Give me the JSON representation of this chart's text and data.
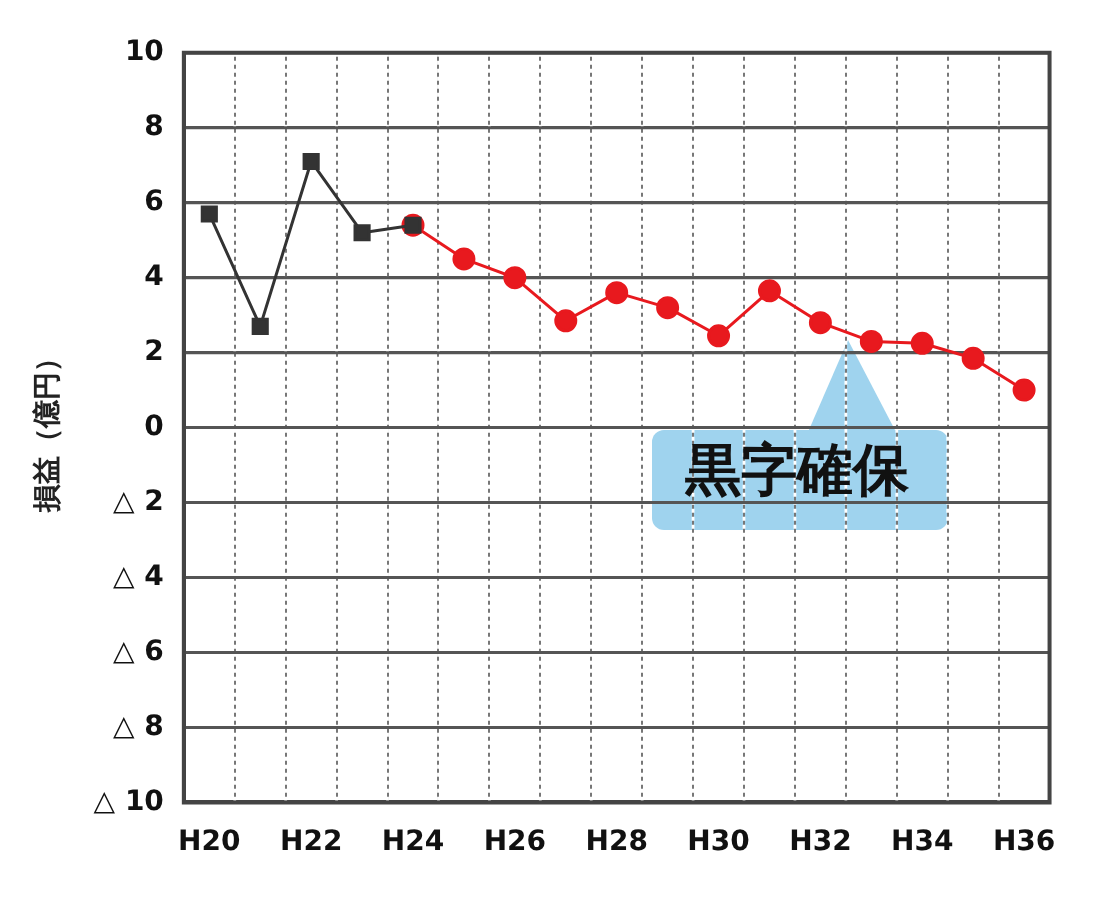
{
  "chart_data": {
    "type": "line",
    "ylabel": "損益（億円）",
    "categories": [
      "H20",
      null,
      "H22",
      null,
      "H24",
      null,
      "H26",
      null,
      "H28",
      null,
      "H30",
      null,
      "H32",
      null,
      "H34",
      null,
      "H36"
    ],
    "series": [
      {
        "color": "#333333",
        "marker": "square",
        "values": [
          5.7,
          2.7,
          7.1,
          5.2,
          5.4,
          null,
          null,
          null,
          null,
          null,
          null,
          null,
          null,
          null,
          null,
          null,
          null
        ]
      },
      {
        "color": "#e8191e",
        "marker": "circle",
        "values": [
          null,
          null,
          null,
          null,
          5.4,
          4.5,
          4.0,
          2.85,
          3.6,
          3.2,
          2.45,
          3.65,
          2.8,
          2.3,
          2.25,
          1.85,
          1.0
        ]
      }
    ],
    "ylim": [
      -10,
      10
    ],
    "yticks": [
      {
        "value": -10,
        "label": "△ 10"
      },
      {
        "value": -8,
        "label": "△ 8"
      },
      {
        "value": -6,
        "label": "△ 6"
      },
      {
        "value": -4,
        "label": "△ 4"
      },
      {
        "value": -2,
        "label": "△ 2"
      },
      0,
      2,
      4,
      6,
      8,
      10
    ],
    "grid": true,
    "legend": false,
    "annotations": [
      "黒字確保"
    ]
  }
}
